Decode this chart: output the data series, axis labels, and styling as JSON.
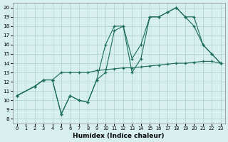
{
  "line1": {
    "x": [
      0,
      2,
      3,
      4,
      5,
      6,
      7,
      8,
      9,
      10,
      11,
      12,
      13,
      14,
      15,
      16,
      17,
      18,
      19,
      20,
      21,
      22,
      23
    ],
    "y": [
      10.5,
      11.5,
      12.2,
      12.2,
      13.0,
      13.0,
      13.0,
      13.0,
      13.2,
      13.3,
      13.4,
      13.5,
      13.5,
      13.6,
      13.7,
      13.8,
      13.9,
      14.0,
      14.0,
      14.1,
      14.2,
      14.2,
      14.0
    ]
  },
  "line2": {
    "x": [
      0,
      2,
      3,
      4,
      5,
      6,
      7,
      8,
      9,
      10,
      11,
      12,
      13,
      14,
      15,
      16,
      17,
      18,
      19,
      20,
      21,
      22,
      23
    ],
    "y": [
      10.5,
      11.5,
      12.2,
      12.2,
      8.5,
      10.5,
      10.0,
      9.8,
      12.2,
      16.0,
      18.0,
      18.0,
      14.5,
      16.0,
      19.0,
      19.0,
      19.5,
      20.0,
      19.0,
      18.0,
      16.0,
      15.0,
      14.0
    ]
  },
  "line3": {
    "x": [
      0,
      2,
      3,
      4,
      5,
      6,
      7,
      8,
      9,
      10,
      11,
      12,
      13,
      14,
      15,
      16,
      17,
      18,
      19,
      20,
      21,
      22,
      23
    ],
    "y": [
      10.5,
      11.5,
      12.2,
      12.2,
      8.5,
      10.5,
      10.0,
      9.8,
      12.2,
      13.0,
      17.5,
      18.0,
      13.0,
      14.5,
      19.0,
      19.0,
      19.5,
      20.0,
      19.0,
      19.0,
      16.0,
      15.0,
      14.0
    ]
  },
  "line_color": "#1a6b5a",
  "bg_color": "#d7f0ef",
  "grid_color": "#aacfcd",
  "xlabel": "Humidex (Indice chaleur)",
  "ylabel_ticks": [
    8,
    9,
    10,
    11,
    12,
    13,
    14,
    15,
    16,
    17,
    18,
    19,
    20
  ],
  "xlabel_ticks": [
    0,
    1,
    2,
    3,
    4,
    5,
    6,
    7,
    8,
    9,
    10,
    11,
    12,
    13,
    14,
    15,
    16,
    17,
    18,
    19,
    20,
    21,
    22,
    23
  ],
  "xlim": [
    -0.5,
    23.5
  ],
  "ylim": [
    7.5,
    20.5
  ]
}
